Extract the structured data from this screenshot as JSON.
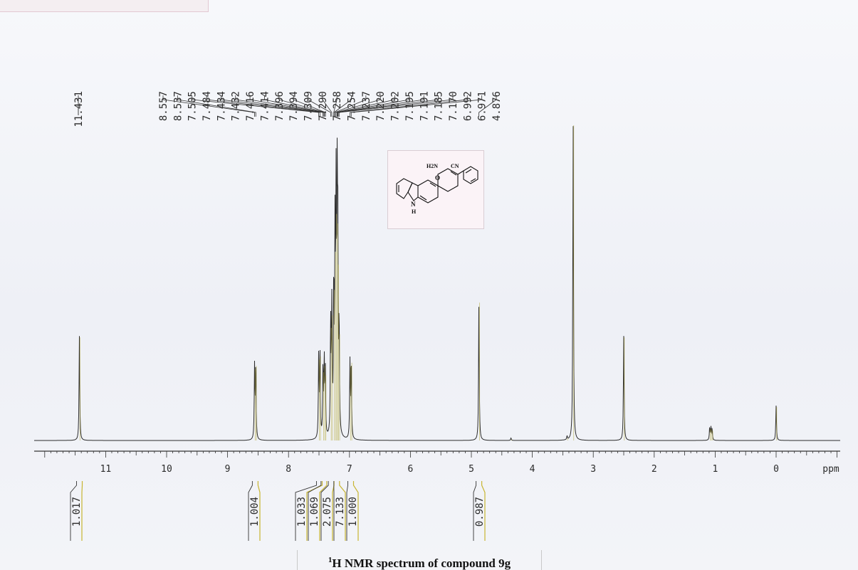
{
  "chart_data": {
    "type": "line",
    "title": "H NMR spectrum of compound 9g",
    "title_sup": "1",
    "xlabel": "ppm",
    "xlim": [
      12.0,
      -1.05
    ],
    "x_reversed": true,
    "x_ticks": [
      "11",
      "10",
      "9",
      "8",
      "7",
      "6",
      "5",
      "4",
      "3",
      "2",
      "1",
      "0"
    ],
    "peak_labels": [
      "11.431",
      "8.557",
      "8.537",
      "7.505",
      "7.484",
      "7.434",
      "7.432",
      "7.416",
      "7.414",
      "7.396",
      "7.394",
      "7.309",
      "7.290",
      "7.258",
      "7.254",
      "7.237",
      "7.220",
      "7.202",
      "7.195",
      "7.191",
      "7.185",
      "7.170",
      "6.992",
      "6.971",
      "4.876"
    ],
    "peaks": [
      {
        "ppm": 11.431,
        "height": 0.33
      },
      {
        "ppm": 8.557,
        "height": 0.23
      },
      {
        "ppm": 8.537,
        "height": 0.24
      },
      {
        "ppm": 7.505,
        "height": 0.26
      },
      {
        "ppm": 7.484,
        "height": 0.27
      },
      {
        "ppm": 7.434,
        "height": 0.22
      },
      {
        "ppm": 7.414,
        "height": 0.24
      },
      {
        "ppm": 7.396,
        "height": 0.21
      },
      {
        "ppm": 7.309,
        "height": 0.36
      },
      {
        "ppm": 7.29,
        "height": 0.4
      },
      {
        "ppm": 7.258,
        "height": 0.48
      },
      {
        "ppm": 7.237,
        "height": 0.6
      },
      {
        "ppm": 7.22,
        "height": 0.72
      },
      {
        "ppm": 7.202,
        "height": 0.69
      },
      {
        "ppm": 7.191,
        "height": 0.56
      },
      {
        "ppm": 7.17,
        "height": 0.34
      },
      {
        "ppm": 6.992,
        "height": 0.24
      },
      {
        "ppm": 6.971,
        "height": 0.25
      },
      {
        "ppm": 4.876,
        "height": 0.44
      },
      {
        "ppm": 4.35,
        "height": 0.008
      },
      {
        "ppm": 3.43,
        "height": 0.012
      },
      {
        "ppm": 3.33,
        "height": 1.0
      },
      {
        "ppm": 2.5,
        "height": 0.33
      },
      {
        "ppm": 1.09,
        "height": 0.04
      },
      {
        "ppm": 1.07,
        "height": 0.04
      },
      {
        "ppm": 1.05,
        "height": 0.035
      },
      {
        "ppm": 0.0,
        "height": 0.11
      }
    ],
    "integrals": [
      {
        "value": "1.017",
        "ppm": 11.431
      },
      {
        "value": "1.004",
        "ppm": 8.547
      },
      {
        "value": "1.033",
        "ppm": 7.495
      },
      {
        "value": "1.069",
        "ppm": 7.42
      },
      {
        "value": "2.075",
        "ppm": 7.3
      },
      {
        "value": "7.133",
        "ppm": 7.21
      },
      {
        "value": "1.000",
        "ppm": 6.98
      },
      {
        "value": "0.987",
        "ppm": 4.876
      }
    ]
  },
  "structure": {
    "label_amine": "H2N",
    "label_nitrile": "CN",
    "label_oxygen": "O",
    "label_nh": "N",
    "label_h": "H"
  },
  "colors": {
    "trace": "#2c2c2c",
    "peak_tint": "#b9b04a",
    "integral": "#c8b531",
    "axis": "#333333"
  }
}
